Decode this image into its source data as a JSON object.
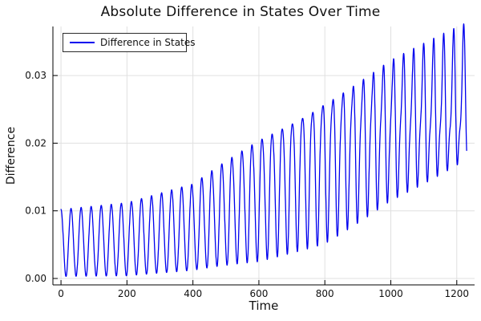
{
  "chart_data": {
    "type": "line",
    "title": "Absolute Difference in States Over Time",
    "xlabel": "Time",
    "ylabel": "Difference",
    "legend_position": "top-left",
    "grid": true,
    "xlim": [
      -24.5,
      1254
    ],
    "ylim": [
      -0.00095,
      0.03725
    ],
    "xticks": [
      0,
      200,
      400,
      600,
      800,
      1000,
      1200
    ],
    "xtick_labels": [
      "0",
      "200",
      "400",
      "600",
      "800",
      "1000",
      "1200"
    ],
    "yticks": [
      0,
      0.01,
      0.02,
      0.03
    ],
    "ytick_labels": [
      "0.00",
      "0.01",
      "0.02",
      "0.03"
    ],
    "colors": {
      "series": "#0000ee",
      "grid": "#e0e0e0",
      "axis": "#000000",
      "text": "#111111",
      "background": "#ffffff"
    },
    "series": [
      {
        "name": "Difference in States",
        "color": "#0000ee",
        "line_width": 1.3
      }
    ],
    "waveform": {
      "comment": "abs-folded oscillation: |b(t) + a(t)*(cos(2*pi*t/period) + r(t)*cos(4*pi*t/period + drift*t))/(1+norm*r)| where b=(env_max+env_min)/2, a=(env_max-env_min)/2 piecewise-linear over envelope anchors",
      "t_start": 0,
      "t_end": 1230,
      "dt": 0.5,
      "period": 30.5,
      "envelope_t": [
        0,
        200,
        400,
        600,
        800,
        1000,
        1230
      ],
      "envelope_max": [
        0.0102,
        0.0112,
        0.014,
        0.0215,
        0.028,
        0.033,
        0.0368
      ],
      "envelope_min": [
        0.0003,
        0.0004,
        0.0012,
        0.0028,
        0.0058,
        0.0115,
        0.0155
      ],
      "harmonic_onset_t": 380,
      "harmonic_slope": 0.00041,
      "harmonic_max_ratio": 0.35,
      "harmonic_phase_drift": 0.0045,
      "norm_factor": 0.55,
      "abs_fold": true,
      "value_at_t0": 0.0102,
      "approx_max_value": 0.0368,
      "approx_final_value": 0.021
    }
  }
}
